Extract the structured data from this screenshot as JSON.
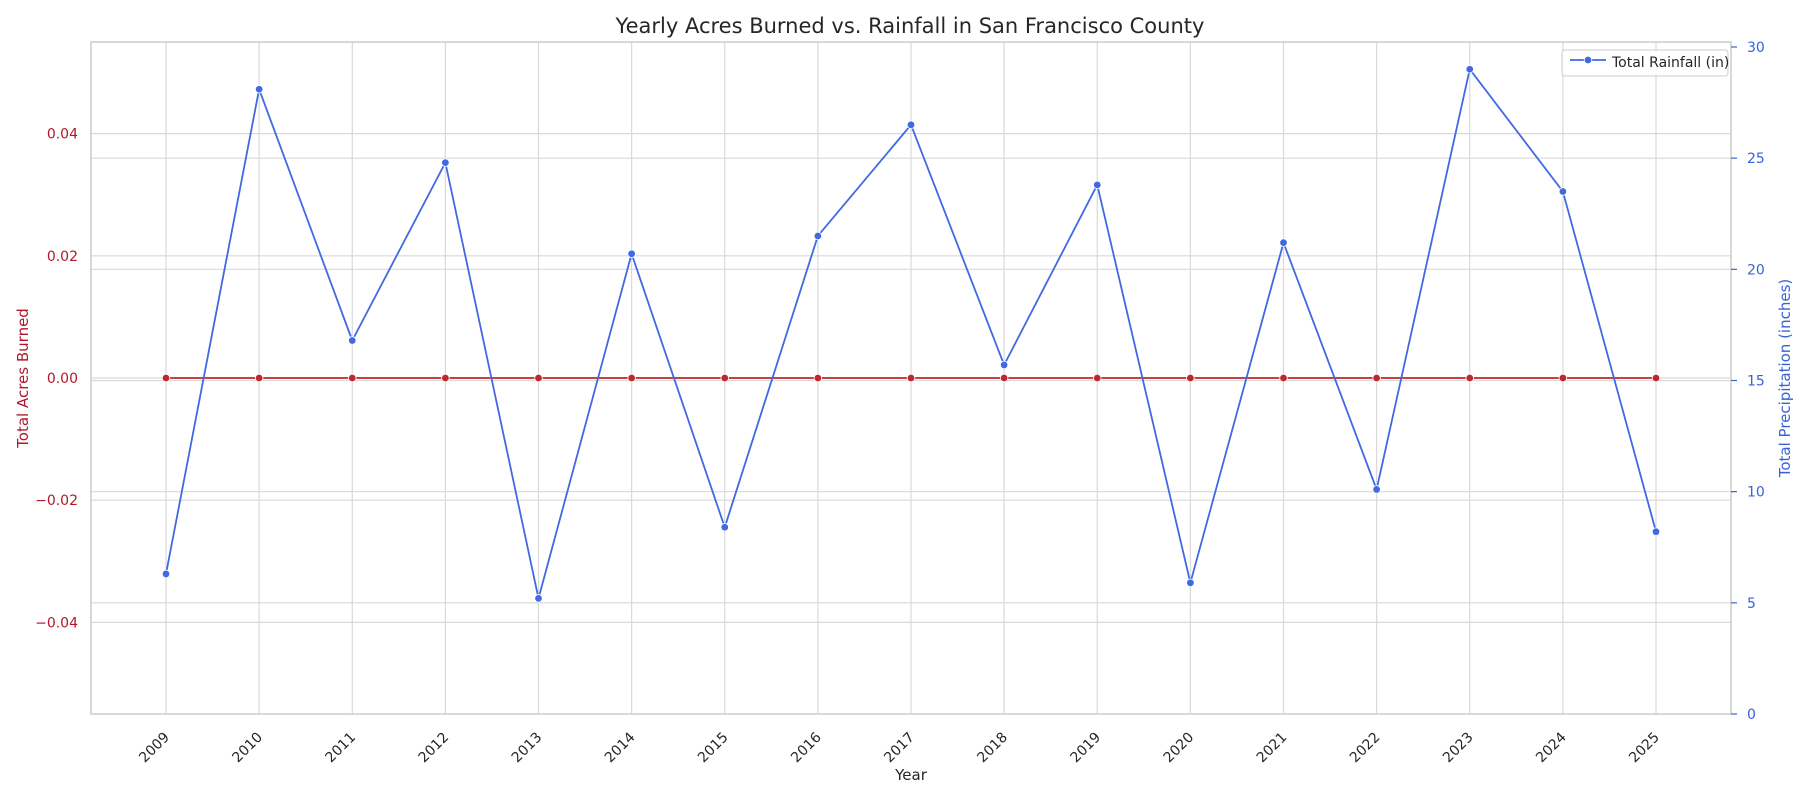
{
  "chart_data": {
    "type": "line",
    "title": "Yearly Acres Burned vs. Rainfall in San Francisco County",
    "xlabel": "Year",
    "categories": [
      "2009",
      "2010",
      "2011",
      "2012",
      "2013",
      "2014",
      "2015",
      "2016",
      "2017",
      "2018",
      "2019",
      "2020",
      "2021",
      "2022",
      "2023",
      "2024",
      "2025"
    ],
    "y_left": {
      "label": "Total Acres Burned",
      "ylim": [
        -0.055,
        0.055
      ],
      "ticks": [
        -0.04,
        -0.02,
        0.0,
        0.02,
        0.04
      ],
      "tick_labels": [
        "−0.04",
        "−0.02",
        "0.00",
        "0.02",
        "0.04"
      ],
      "color": "#b2182b"
    },
    "y_right": {
      "label": "Total Precipitation (inches)",
      "ylim": [
        0,
        30
      ],
      "ticks": [
        0,
        5,
        10,
        15,
        20,
        25,
        30
      ],
      "tick_labels": [
        "0",
        "5",
        "10",
        "15",
        "20",
        "25",
        "30"
      ],
      "color": "#3a62d8"
    },
    "series": [
      {
        "axis": "left",
        "color": "#c0262d",
        "values": [
          0,
          0,
          0,
          0,
          0,
          0,
          0,
          0,
          0,
          0,
          0,
          0,
          0,
          0,
          0,
          0,
          0
        ]
      },
      {
        "name": "Total Rainfall (in)",
        "axis": "right",
        "color": "#4169e1",
        "values": [
          6.3,
          28.1,
          16.8,
          24.8,
          5.2,
          20.7,
          8.4,
          21.5,
          26.5,
          15.7,
          23.8,
          5.9,
          21.2,
          10.1,
          29.0,
          23.5,
          8.2
        ]
      }
    ],
    "grid": true,
    "legend": {
      "placement": "top-right",
      "entries": [
        "Total Rainfall (in)"
      ]
    }
  }
}
